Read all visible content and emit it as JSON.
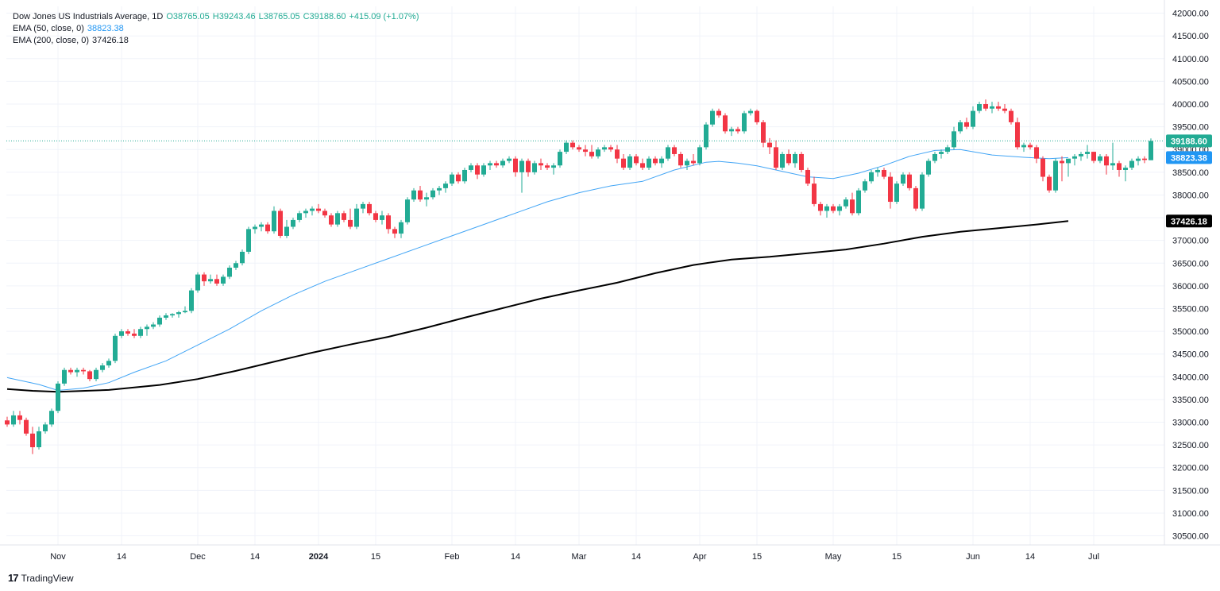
{
  "header": {
    "symbol": "Dow Jones US Industrials Average, 1D",
    "open": "O38765.05",
    "high": "H39243.46",
    "low": "L38765.05",
    "close": "C39188.60",
    "change": "+415.09 (+1.07%)"
  },
  "indicators": [
    {
      "label": "EMA (50, close, 0)",
      "value": "38823.38"
    },
    {
      "label": "EMA (200, close, 0)",
      "value": "37426.18"
    }
  ],
  "brand": "TradingView",
  "colors": {
    "up": "#22ab94",
    "down": "#f23645",
    "ema50": "#42a5f5",
    "ema200": "#000000",
    "grid": "#f0f3fa",
    "price_line": "#22ab94"
  },
  "chart_data": {
    "type": "candlestick",
    "title": "Dow Jones US Industrials Average, 1D",
    "y_range": [
      30300,
      42150
    ],
    "y_ticks": [
      30500,
      31000,
      31500,
      32000,
      32500,
      33000,
      33500,
      34000,
      34500,
      35000,
      35500,
      36000,
      36500,
      37000,
      37500,
      38000,
      38500,
      39000,
      39500,
      40000,
      40500,
      41000,
      41500,
      42000
    ],
    "y_tick_labels": [
      "30500.00",
      "31000.00",
      "31500.00",
      "32000.00",
      "32500.00",
      "33000.00",
      "33500.00",
      "34000.00",
      "34500.00",
      "35000.00",
      "35500.00",
      "36000.00",
      "36500.00",
      "37000.00",
      "37500.00",
      "38000.00",
      "38500.00",
      "39000.00",
      "39500.00",
      "40000.00",
      "40500.00",
      "41000.00",
      "41500.00",
      "42000.00"
    ],
    "x_ticks": [
      {
        "label": "Nov",
        "index": 8
      },
      {
        "label": "14",
        "index": 18
      },
      {
        "label": "Dec",
        "index": 30
      },
      {
        "label": "14",
        "index": 39
      },
      {
        "label": "2024",
        "index": 49
      },
      {
        "label": "15",
        "index": 58
      },
      {
        "label": "Feb",
        "index": 70
      },
      {
        "label": "14",
        "index": 80
      },
      {
        "label": "Mar",
        "index": 90
      },
      {
        "label": "14",
        "index": 99
      },
      {
        "label": "Apr",
        "index": 109
      },
      {
        "label": "15",
        "index": 118
      },
      {
        "label": "May",
        "index": 130
      },
      {
        "label": "15",
        "index": 140
      },
      {
        "label": "Jun",
        "index": 152
      },
      {
        "label": "14",
        "index": 161
      },
      {
        "label": "Jul",
        "index": 171
      }
    ],
    "last_price": {
      "label": "39188.60",
      "value": 39188.6
    },
    "ema50_label": {
      "label": "38823.38",
      "value": 38823.38
    },
    "ema200_label": {
      "label": "37426.18",
      "value": 37426.18
    },
    "candles": [
      [
        33040,
        33120,
        32900,
        32950
      ],
      [
        32950,
        33250,
        32900,
        33150
      ],
      [
        33150,
        33250,
        32950,
        33050
      ],
      [
        33050,
        33100,
        32700,
        32750
      ],
      [
        32750,
        32900,
        32300,
        32450
      ],
      [
        32450,
        32900,
        32400,
        32800
      ],
      [
        32800,
        33000,
        32750,
        32950
      ],
      [
        32950,
        33300,
        32900,
        33250
      ],
      [
        33250,
        33900,
        33200,
        33850
      ],
      [
        33850,
        34200,
        33800,
        34150
      ],
      [
        34150,
        34200,
        34050,
        34100
      ],
      [
        34100,
        34200,
        34000,
        34150
      ],
      [
        34150,
        34200,
        34050,
        34120
      ],
      [
        34120,
        34150,
        33900,
        33950
      ],
      [
        33950,
        34200,
        33900,
        34150
      ],
      [
        34150,
        34300,
        34100,
        34250
      ],
      [
        34250,
        34400,
        34200,
        34350
      ],
      [
        34350,
        34950,
        34300,
        34900
      ],
      [
        34900,
        35050,
        34850,
        35000
      ],
      [
        35000,
        35050,
        34900,
        34950
      ],
      [
        34950,
        35050,
        34850,
        34900
      ],
      [
        34900,
        35100,
        34850,
        35050
      ],
      [
        35050,
        35150,
        34900,
        35100
      ],
      [
        35100,
        35200,
        35050,
        35150
      ],
      [
        35150,
        35350,
        35100,
        35300
      ],
      [
        35300,
        35400,
        35250,
        35350
      ],
      [
        35350,
        35400,
        35300,
        35380
      ],
      [
        35380,
        35450,
        35300,
        35420
      ],
      [
        35420,
        35550,
        35400,
        35450
      ],
      [
        35450,
        35950,
        35400,
        35900
      ],
      [
        35900,
        36300,
        35850,
        36250
      ],
      [
        36250,
        36300,
        36000,
        36100
      ],
      [
        36100,
        36250,
        36050,
        36150
      ],
      [
        36150,
        36250,
        36000,
        36050
      ],
      [
        36050,
        36250,
        36000,
        36200
      ],
      [
        36200,
        36450,
        36150,
        36400
      ],
      [
        36400,
        36550,
        36350,
        36500
      ],
      [
        36500,
        36800,
        36450,
        36750
      ],
      [
        36750,
        37300,
        36700,
        37250
      ],
      [
        37250,
        37350,
        37150,
        37300
      ],
      [
        37300,
        37400,
        37200,
        37350
      ],
      [
        37350,
        37400,
        37150,
        37200
      ],
      [
        37200,
        37750,
        37150,
        37650
      ],
      [
        37650,
        37700,
        37050,
        37100
      ],
      [
        37100,
        37450,
        37050,
        37300
      ],
      [
        37300,
        37500,
        37250,
        37450
      ],
      [
        37450,
        37650,
        37400,
        37600
      ],
      [
        37600,
        37700,
        37500,
        37650
      ],
      [
        37650,
        37750,
        37550,
        37700
      ],
      [
        37700,
        37800,
        37600,
        37650
      ],
      [
        37650,
        37700,
        37500,
        37550
      ],
      [
        37550,
        37600,
        37300,
        37350
      ],
      [
        37350,
        37650,
        37300,
        37600
      ],
      [
        37600,
        37650,
        37400,
        37450
      ],
      [
        37450,
        37700,
        37250,
        37300
      ],
      [
        37300,
        37800,
        37250,
        37700
      ],
      [
        37700,
        37850,
        37600,
        37800
      ],
      [
        37800,
        37850,
        37550,
        37600
      ],
      [
        37600,
        37650,
        37400,
        37450
      ],
      [
        37450,
        37650,
        37350,
        37550
      ],
      [
        37550,
        37600,
        37150,
        37250
      ],
      [
        37250,
        37300,
        37050,
        37150
      ],
      [
        37150,
        37450,
        37050,
        37400
      ],
      [
        37400,
        37950,
        37350,
        37900
      ],
      [
        37900,
        38150,
        37850,
        38100
      ],
      [
        38100,
        38200,
        37850,
        37900
      ],
      [
        37900,
        38050,
        37750,
        37950
      ],
      [
        37950,
        38150,
        37900,
        38100
      ],
      [
        38100,
        38200,
        38000,
        38150
      ],
      [
        38150,
        38300,
        38050,
        38250
      ],
      [
        38250,
        38500,
        38200,
        38450
      ],
      [
        38450,
        38500,
        38250,
        38300
      ],
      [
        38300,
        38600,
        38250,
        38550
      ],
      [
        38550,
        38700,
        38500,
        38650
      ],
      [
        38650,
        38700,
        38350,
        38450
      ],
      [
        38450,
        38700,
        38400,
        38650
      ],
      [
        38650,
        38750,
        38550,
        38700
      ],
      [
        38700,
        38750,
        38600,
        38650
      ],
      [
        38650,
        38800,
        38600,
        38750
      ],
      [
        38750,
        38850,
        38700,
        38800
      ],
      [
        38800,
        38850,
        38400,
        38500
      ],
      [
        38500,
        38800,
        38050,
        38750
      ],
      [
        38750,
        38800,
        38400,
        38500
      ],
      [
        38500,
        38750,
        38450,
        38700
      ],
      [
        38700,
        38800,
        38550,
        38650
      ],
      [
        38650,
        38700,
        38550,
        38600
      ],
      [
        38600,
        38700,
        38450,
        38650
      ],
      [
        38650,
        39000,
        38600,
        38950
      ],
      [
        38950,
        39200,
        38900,
        39150
      ],
      [
        39150,
        39200,
        39000,
        39050
      ],
      [
        39050,
        39100,
        38950,
        39000
      ],
      [
        39000,
        39100,
        38850,
        38950
      ],
      [
        38950,
        39100,
        38800,
        38850
      ],
      [
        38850,
        39050,
        38800,
        39000
      ],
      [
        39000,
        39100,
        38950,
        39050
      ],
      [
        39050,
        39100,
        38950,
        39000
      ],
      [
        39000,
        39100,
        38700,
        38800
      ],
      [
        38800,
        38900,
        38550,
        38600
      ],
      [
        38600,
        38900,
        38550,
        38850
      ],
      [
        38850,
        38900,
        38650,
        38700
      ],
      [
        38700,
        38800,
        38550,
        38600
      ],
      [
        38600,
        38850,
        38550,
        38800
      ],
      [
        38800,
        38850,
        38650,
        38700
      ],
      [
        38700,
        38850,
        38600,
        38800
      ],
      [
        38800,
        39100,
        38750,
        39050
      ],
      [
        39050,
        39100,
        38850,
        38900
      ],
      [
        38900,
        38950,
        38600,
        38650
      ],
      [
        38650,
        38800,
        38550,
        38750
      ],
      [
        38750,
        38900,
        38650,
        38700
      ],
      [
        38700,
        39100,
        38650,
        39050
      ],
      [
        39050,
        39600,
        39000,
        39550
      ],
      [
        39550,
        39900,
        39500,
        39850
      ],
      [
        39850,
        39900,
        39700,
        39750
      ],
      [
        39750,
        39800,
        39350,
        39400
      ],
      [
        39400,
        39500,
        39300,
        39450
      ],
      [
        39450,
        39500,
        39350,
        39400
      ],
      [
        39400,
        39850,
        39350,
        39800
      ],
      [
        39800,
        39900,
        39750,
        39850
      ],
      [
        39850,
        39880,
        39550,
        39600
      ],
      [
        39600,
        39650,
        39050,
        39150
      ],
      [
        39150,
        39250,
        38900,
        39050
      ],
      [
        39050,
        39200,
        38550,
        38600
      ],
      [
        38600,
        38950,
        38550,
        38900
      ],
      [
        38900,
        39000,
        38650,
        38700
      ],
      [
        38700,
        38950,
        38600,
        38900
      ],
      [
        38900,
        38950,
        38500,
        38550
      ],
      [
        38550,
        38600,
        38200,
        38250
      ],
      [
        38250,
        38400,
        37750,
        37800
      ],
      [
        37800,
        37850,
        37550,
        37650
      ],
      [
        37650,
        37800,
        37500,
        37750
      ],
      [
        37750,
        37800,
        37600,
        37650
      ],
      [
        37650,
        37800,
        37550,
        37750
      ],
      [
        37750,
        37950,
        37700,
        37900
      ],
      [
        37900,
        38050,
        37550,
        37600
      ],
      [
        37600,
        38150,
        37550,
        38100
      ],
      [
        38100,
        38350,
        38050,
        38300
      ],
      [
        38300,
        38550,
        38250,
        38500
      ],
      [
        38500,
        38600,
        38400,
        38550
      ],
      [
        38550,
        38600,
        38350,
        38400
      ],
      [
        38400,
        38500,
        37700,
        37850
      ],
      [
        37850,
        38300,
        37800,
        38250
      ],
      [
        38250,
        38500,
        38200,
        38450
      ],
      [
        38450,
        38500,
        38100,
        38150
      ],
      [
        38150,
        38200,
        37650,
        37700
      ],
      [
        37700,
        38500,
        37650,
        38450
      ],
      [
        38450,
        38800,
        38400,
        38750
      ],
      [
        38750,
        38950,
        38700,
        38900
      ],
      [
        38900,
        39000,
        38800,
        38950
      ],
      [
        38950,
        39100,
        38900,
        39050
      ],
      [
        39050,
        39500,
        39000,
        39400
      ],
      [
        39400,
        39650,
        39350,
        39600
      ],
      [
        39600,
        39700,
        39450,
        39500
      ],
      [
        39500,
        39950,
        39450,
        39850
      ],
      [
        39850,
        40050,
        39800,
        40000
      ],
      [
        40000,
        40100,
        39850,
        39900
      ],
      [
        39900,
        40050,
        39800,
        39950
      ],
      [
        39950,
        40050,
        39850,
        39900
      ],
      [
        39900,
        40000,
        39800,
        39850
      ],
      [
        39850,
        39900,
        39550,
        39600
      ],
      [
        39600,
        39700,
        39000,
        39050
      ],
      [
        39050,
        39150,
        38950,
        39100
      ],
      [
        39100,
        39150,
        39000,
        39050
      ],
      [
        39050,
        39100,
        38700,
        38800
      ],
      [
        38800,
        38850,
        38300,
        38400
      ],
      [
        38400,
        38450,
        38050,
        38100
      ],
      [
        38100,
        38800,
        38050,
        38750
      ],
      [
        38750,
        38850,
        38300,
        38700
      ],
      [
        38700,
        38750,
        38400,
        38800
      ],
      [
        38800,
        38900,
        38650,
        38850
      ],
      [
        38850,
        38950,
        38750,
        38900
      ],
      [
        38900,
        39100,
        38800,
        38950
      ],
      [
        38950,
        38950,
        38700,
        38750
      ],
      [
        38750,
        38900,
        38700,
        38850
      ],
      [
        38850,
        38900,
        38450,
        38650
      ],
      [
        38650,
        39150,
        38550,
        38700
      ],
      [
        38700,
        38750,
        38400,
        38550
      ],
      [
        38550,
        38650,
        38300,
        38600
      ],
      [
        38600,
        38800,
        38550,
        38750
      ],
      [
        38750,
        38850,
        38650,
        38800
      ],
      [
        38800,
        38850,
        38700,
        38770
      ],
      [
        38765.05,
        39243.46,
        38765.05,
        39188.6
      ]
    ],
    "ema50": [
      [
        0,
        33980
      ],
      [
        5,
        33830
      ],
      [
        8,
        33700
      ],
      [
        12,
        33750
      ],
      [
        16,
        33870
      ],
      [
        20,
        34100
      ],
      [
        25,
        34350
      ],
      [
        30,
        34700
      ],
      [
        35,
        35050
      ],
      [
        40,
        35450
      ],
      [
        45,
        35800
      ],
      [
        50,
        36100
      ],
      [
        55,
        36350
      ],
      [
        60,
        36600
      ],
      [
        65,
        36850
      ],
      [
        70,
        37100
      ],
      [
        75,
        37350
      ],
      [
        80,
        37600
      ],
      [
        85,
        37850
      ],
      [
        90,
        38050
      ],
      [
        95,
        38200
      ],
      [
        100,
        38300
      ],
      [
        105,
        38550
      ],
      [
        110,
        38720
      ],
      [
        112,
        38740
      ],
      [
        115,
        38700
      ],
      [
        118,
        38640
      ],
      [
        122,
        38520
      ],
      [
        126,
        38400
      ],
      [
        130,
        38360
      ],
      [
        134,
        38480
      ],
      [
        138,
        38650
      ],
      [
        142,
        38850
      ],
      [
        146,
        38980
      ],
      [
        150,
        39000
      ],
      [
        155,
        38880
      ],
      [
        160,
        38830
      ],
      [
        164,
        38800
      ],
      [
        167,
        38823
      ]
    ],
    "ema200": [
      [
        0,
        33730
      ],
      [
        4,
        33690
      ],
      [
        8,
        33670
      ],
      [
        16,
        33710
      ],
      [
        24,
        33820
      ],
      [
        30,
        33950
      ],
      [
        36,
        34130
      ],
      [
        42,
        34330
      ],
      [
        48,
        34530
      ],
      [
        54,
        34710
      ],
      [
        60,
        34880
      ],
      [
        66,
        35080
      ],
      [
        72,
        35300
      ],
      [
        78,
        35510
      ],
      [
        84,
        35720
      ],
      [
        90,
        35900
      ],
      [
        96,
        36070
      ],
      [
        102,
        36280
      ],
      [
        108,
        36460
      ],
      [
        114,
        36580
      ],
      [
        120,
        36640
      ],
      [
        126,
        36720
      ],
      [
        132,
        36800
      ],
      [
        138,
        36930
      ],
      [
        144,
        37080
      ],
      [
        150,
        37190
      ],
      [
        156,
        37270
      ],
      [
        162,
        37350
      ],
      [
        167,
        37426
      ]
    ]
  }
}
